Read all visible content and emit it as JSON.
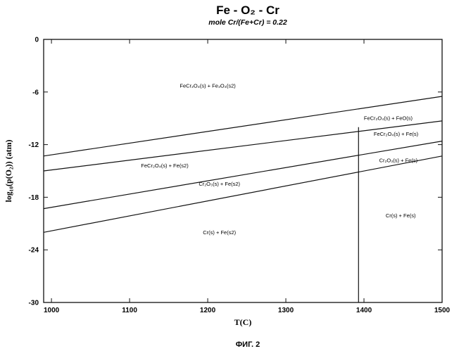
{
  "chart_data": {
    "type": "line",
    "title": "Fe - O₂ - Cr",
    "subtitle": "mole Cr/(Fe+Cr) = 0.22",
    "xlabel": "T(C)",
    "ylabel": "log₁₀(p(O₂)) (atm)",
    "xlim": [
      990,
      1500
    ],
    "ylim": [
      -30,
      0
    ],
    "x_ticks": [
      "1000",
      "1100",
      "1200",
      "1300",
      "1400",
      "1500"
    ],
    "y_ticks": [
      "0",
      "-6",
      "-12",
      "-18",
      "-24",
      "-30"
    ],
    "grid": false,
    "series": [
      {
        "x": [
          990,
          1500
        ],
        "y": [
          -13.3,
          -6.5
        ]
      },
      {
        "x": [
          990,
          1500
        ],
        "y": [
          -15.0,
          -9.3
        ]
      },
      {
        "x": [
          990,
          1500
        ],
        "y": [
          -19.3,
          -11.6
        ]
      },
      {
        "x": [
          990,
          1500
        ],
        "y": [
          -22.0,
          -13.3
        ]
      },
      {
        "x": [
          1393,
          1393
        ],
        "y": [
          -10.0,
          -30
        ]
      }
    ],
    "regions": [
      {
        "label": "FeCr₂O₄(s) + Fe₃O₄(s2)",
        "x": 1200,
        "y": -5.5
      },
      {
        "label": "FeCr₂O₄(s) + FeO(s)",
        "x": 1431,
        "y": -9.2
      },
      {
        "label": "FeCr₂O₄(s) + Fe(s)",
        "x": 1441,
        "y": -11.0
      },
      {
        "label": "FeCr₂O₄(s) + Fe(s2)",
        "x": 1145,
        "y": -14.6
      },
      {
        "label": "Cr₂O₃(s) + Fe(s)",
        "x": 1444,
        "y": -14.0
      },
      {
        "label": "Cr₂O₃(s) + Fe(s2)",
        "x": 1215,
        "y": -16.7
      },
      {
        "label": "Cr(s) + Fe(s)",
        "x": 1447,
        "y": -20.3
      },
      {
        "label": "Cr(s) + Fe(s2)",
        "x": 1215,
        "y": -22.2
      }
    ]
  },
  "caption": "ФИГ. 2"
}
